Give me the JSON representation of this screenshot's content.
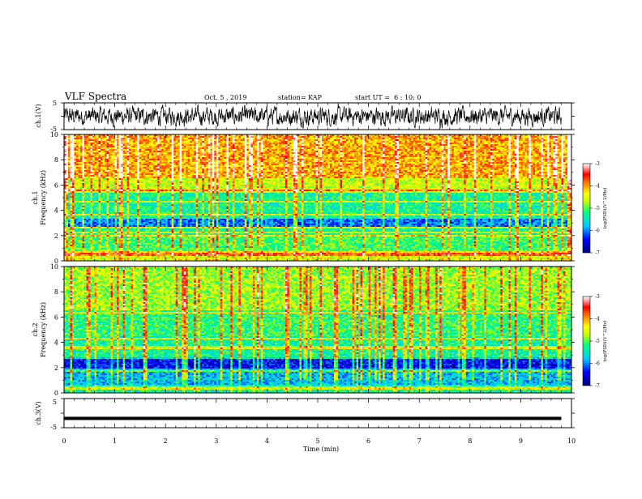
{
  "header": {
    "title": "VLF Spectra",
    "date": "Oct. 5 , 2019",
    "station": "station= KAP",
    "start": "start UT =  6 : 10: 0"
  },
  "colors": {
    "spectrogram_scale": [
      "#00007a",
      "#0000ff",
      "#00c8ff",
      "#00ff80",
      "#c8ff00",
      "#ffff00",
      "#ff8000",
      "#ff0000",
      "#ff9999",
      "#ffffff"
    ]
  },
  "chart_data": [
    {
      "type": "line",
      "name": "ch1-waveform",
      "ylabel": "ch.1(V)",
      "ylim": [
        -5,
        5
      ],
      "yticks": [
        "5",
        "-5"
      ],
      "xlim": [
        0,
        10
      ],
      "grid": false,
      "description_values": "noise-like waveform spanning roughly -3 to 3 V over 0 to 9.8 min"
    },
    {
      "type": "heatmap",
      "name": "ch1-spectrogram",
      "ylabel": "ch.1\nFrequency (kHz)",
      "ylim": [
        0,
        10
      ],
      "yticks": [
        "0",
        "2",
        "4",
        "6",
        "8",
        "10"
      ],
      "xlim": [
        0,
        10
      ],
      "colorbar": {
        "label": "log(PSD)(V^2/Hz)",
        "ticks": [
          "-3",
          "-4",
          "-5",
          "-6",
          "-7"
        ],
        "range": [
          -7,
          -3
        ]
      }
    },
    {
      "type": "heatmap",
      "name": "ch2-spectrogram",
      "ylabel": "ch.2\nFrequency (kHz)",
      "ylim": [
        0,
        10
      ],
      "yticks": [
        "0",
        "2",
        "4",
        "6",
        "8",
        "10"
      ],
      "xlim": [
        0,
        10
      ],
      "colorbar": {
        "label": "log(PSD)(V^2/Hz)",
        "ticks": [
          "-3",
          "-4",
          "-5",
          "-6",
          "-7"
        ],
        "range": [
          -7,
          -3
        ]
      }
    },
    {
      "type": "line",
      "name": "ch3-waveform",
      "ylabel": "ch.3(V)",
      "ylim": [
        -5,
        5
      ],
      "yticks": [
        "5",
        "-5"
      ],
      "xlim": [
        0,
        10
      ],
      "xlabel": "Time (min)",
      "xticks": [
        "0",
        "1",
        "2",
        "3",
        "4",
        "5",
        "6",
        "7",
        "8",
        "9",
        "10"
      ],
      "values": [
        [
          0,
          -1.8
        ],
        [
          9.8,
          -1.8
        ]
      ]
    }
  ]
}
